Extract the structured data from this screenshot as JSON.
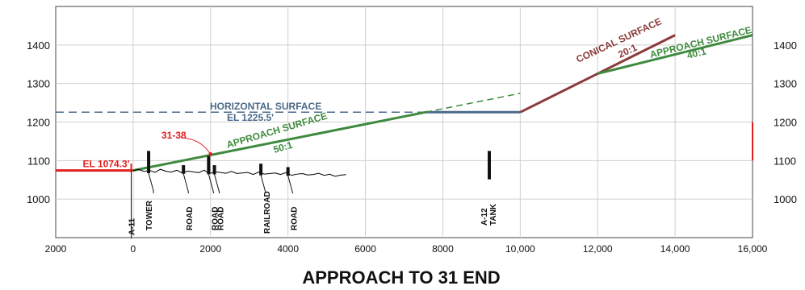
{
  "title": "APPROACH TO 31 END",
  "colors": {
    "approach": "#3e8a3e",
    "conical": "#8b3a3a",
    "horizontal": "#4a6a8a",
    "existing": "#e02020",
    "terrain": "#000000"
  },
  "chart_data": {
    "type": "profile",
    "x_range": [
      -2000,
      16000
    ],
    "y_range": [
      900,
      1500
    ],
    "x_ticks": [
      {
        "v": -2000,
        "label": "2000"
      },
      {
        "v": 0,
        "label": "0"
      },
      {
        "v": 2000,
        "label": "2000"
      },
      {
        "v": 4000,
        "label": "4000"
      },
      {
        "v": 6000,
        "label": "6000"
      },
      {
        "v": 8000,
        "label": "8000"
      },
      {
        "v": 10000,
        "label": "10,000"
      },
      {
        "v": 12000,
        "label": "12,000"
      },
      {
        "v": 14000,
        "label": "14,000"
      },
      {
        "v": 16000,
        "label": "16,000"
      }
    ],
    "y_ticks": [
      1000,
      1100,
      1200,
      1300,
      1400
    ],
    "y_tick_labels": [
      "1000",
      "1100",
      "1200",
      "1300",
      "1400"
    ],
    "surfaces": {
      "approach": {
        "label": "APPROACH SURFACE",
        "slope": "50:1",
        "points": [
          [
            0,
            1074.3
          ],
          [
            7550,
            1225.5
          ]
        ]
      },
      "approach_extension": {
        "points": [
          [
            7550,
            1225.5
          ],
          [
            10000,
            1274.5
          ]
        ]
      },
      "horizontal": {
        "label": "HORIZONTAL SURFACE",
        "elevation_label": "EL 1225.5'",
        "dashed_points": [
          [
            -2000,
            1225.5
          ],
          [
            7550,
            1225.5
          ]
        ],
        "solid_points": [
          [
            7550,
            1225.5
          ],
          [
            10000,
            1225.5
          ]
        ]
      },
      "conical": {
        "label": "CONICAL SURFACE",
        "slope": "20:1",
        "points": [
          [
            10000,
            1225.5
          ],
          [
            12000,
            1325.5
          ],
          [
            14000,
            1425.5
          ]
        ]
      },
      "approach_40": {
        "label": "APPROACH SURFACE",
        "slope": "40:1",
        "points": [
          [
            12000,
            1325.5
          ],
          [
            16000,
            1425.5
          ]
        ]
      }
    },
    "runway_end": {
      "label": "EL 1074.3'",
      "elevation": 1074.3,
      "x_from": -2000,
      "x_to": 0
    },
    "callout": {
      "label": "31-38",
      "x": 2000,
      "elevation": 1117
    },
    "obstacles": [
      {
        "label": "A-11",
        "x": -50,
        "top": 1074
      },
      {
        "label": "TOWER",
        "x": 400,
        "top": 1125
      },
      {
        "label": "ROAD",
        "x": 1300,
        "top": 1088
      },
      {
        "label": "ROAD",
        "x": 1950,
        "top": 1112
      },
      {
        "label": "ROAD",
        "x": 2100,
        "top": 1088
      },
      {
        "label": "RAILROAD",
        "x": 3300,
        "top": 1092
      },
      {
        "label": "ROAD",
        "x": 4000,
        "top": 1083
      },
      {
        "label": "A-12\nTANK",
        "x": 9200,
        "top": 1125
      }
    ],
    "obstacle_labels": [
      "A-11",
      "TOWER",
      "ROAD",
      "ROAD",
      "ROAD",
      "RAILROAD",
      "ROAD",
      "A-12",
      "TANK"
    ]
  }
}
